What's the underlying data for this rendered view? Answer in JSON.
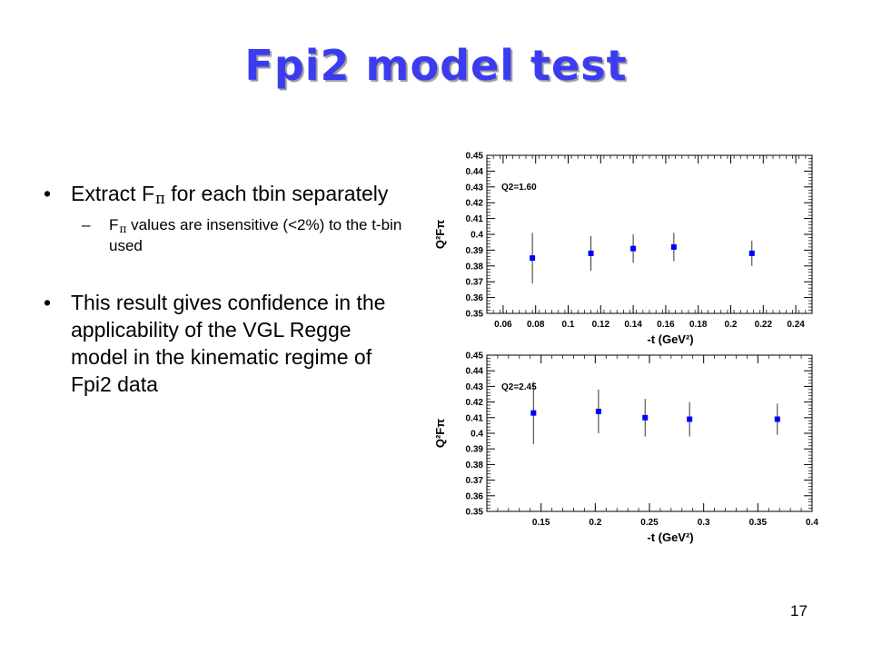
{
  "slide": {
    "title": "Fpi2 model test",
    "page_number": "17",
    "bullets": [
      {
        "pre": "Extract F",
        "sub": "π",
        "post": " for each tbin separately"
      },
      {
        "pre": "F",
        "sub": "π",
        "post": " values are insensitive (<2%) to the t-bin used"
      },
      {
        "text": "This result gives confidence in the applicability of the VGL Regge model in the kinematic regime of Fpi2 data"
      }
    ]
  },
  "chart_data": [
    {
      "type": "scatter",
      "annotation": "Q2=1.60",
      "xlabel": "-t (GeV²)",
      "ylabel": "Q²Fπ",
      "xlim": [
        0.05,
        0.25
      ],
      "ylim": [
        0.35,
        0.45
      ],
      "xticks": [
        "0.06",
        "0.08",
        "0.1",
        "0.12",
        "0.14",
        "0.16",
        "0.18",
        "0.2",
        "0.22",
        "0.24"
      ],
      "yticks": [
        "0.35",
        "0.36",
        "0.37",
        "0.38",
        "0.39",
        "0.4",
        "0.41",
        "0.42",
        "0.43",
        "0.44",
        "0.45"
      ],
      "marker_color": "#0000ff",
      "points": [
        {
          "x": 0.078,
          "y": 0.385,
          "err": 0.016
        },
        {
          "x": 0.114,
          "y": 0.388,
          "err": 0.011
        },
        {
          "x": 0.14,
          "y": 0.391,
          "err": 0.009
        },
        {
          "x": 0.165,
          "y": 0.392,
          "err": 0.009
        },
        {
          "x": 0.213,
          "y": 0.388,
          "err": 0.008
        }
      ]
    },
    {
      "type": "scatter",
      "annotation": "Q2=2.45",
      "xlabel": "-t (GeV²)",
      "ylabel": "Q²Fπ",
      "xlim": [
        0.1,
        0.4
      ],
      "ylim": [
        0.35,
        0.45
      ],
      "xticks": [
        "0.15",
        "0.2",
        "0.25",
        "0.3",
        "0.35",
        "0.4"
      ],
      "yticks": [
        "0.35",
        "0.36",
        "0.37",
        "0.38",
        "0.39",
        "0.4",
        "0.41",
        "0.42",
        "0.43",
        "0.44",
        "0.45"
      ],
      "marker_color": "#0000ff",
      "points": [
        {
          "x": 0.143,
          "y": 0.413,
          "err": 0.02
        },
        {
          "x": 0.203,
          "y": 0.414,
          "err": 0.014
        },
        {
          "x": 0.246,
          "y": 0.41,
          "err": 0.012
        },
        {
          "x": 0.287,
          "y": 0.409,
          "err": 0.011
        },
        {
          "x": 0.368,
          "y": 0.409,
          "err": 0.01
        }
      ]
    }
  ]
}
